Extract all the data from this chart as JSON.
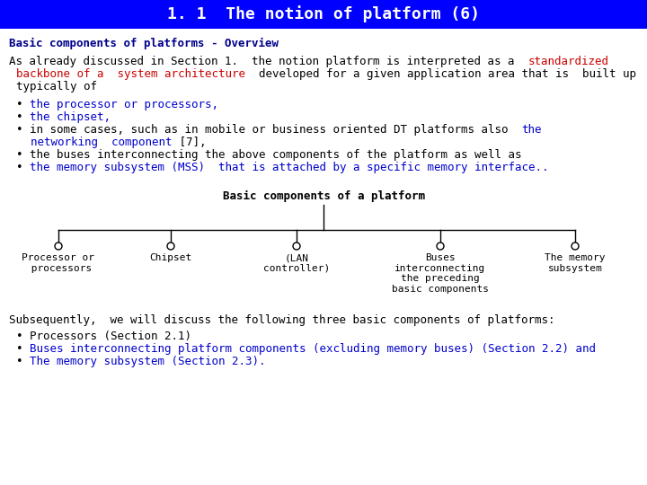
{
  "title": "1. 1  The notion of platform (6)",
  "title_bg": "#0000FF",
  "title_color": "#FFFFFF",
  "subtitle": "Basic components of platforms - Overview",
  "subtitle_color": "#00008B",
  "tree_title": "Basic components of a platform",
  "tree_nodes": [
    "Processor or\n processors",
    "Chipset",
    "(LAN\ncontroller)",
    "Buses\ninterconnecting\nthe preceding\nbasic components",
    "The memory\nsubsystem"
  ],
  "subsequently": "Subsequently,  we will discuss the following three basic components of platforms:",
  "font_size": 9,
  "background": "#FFFFFF"
}
